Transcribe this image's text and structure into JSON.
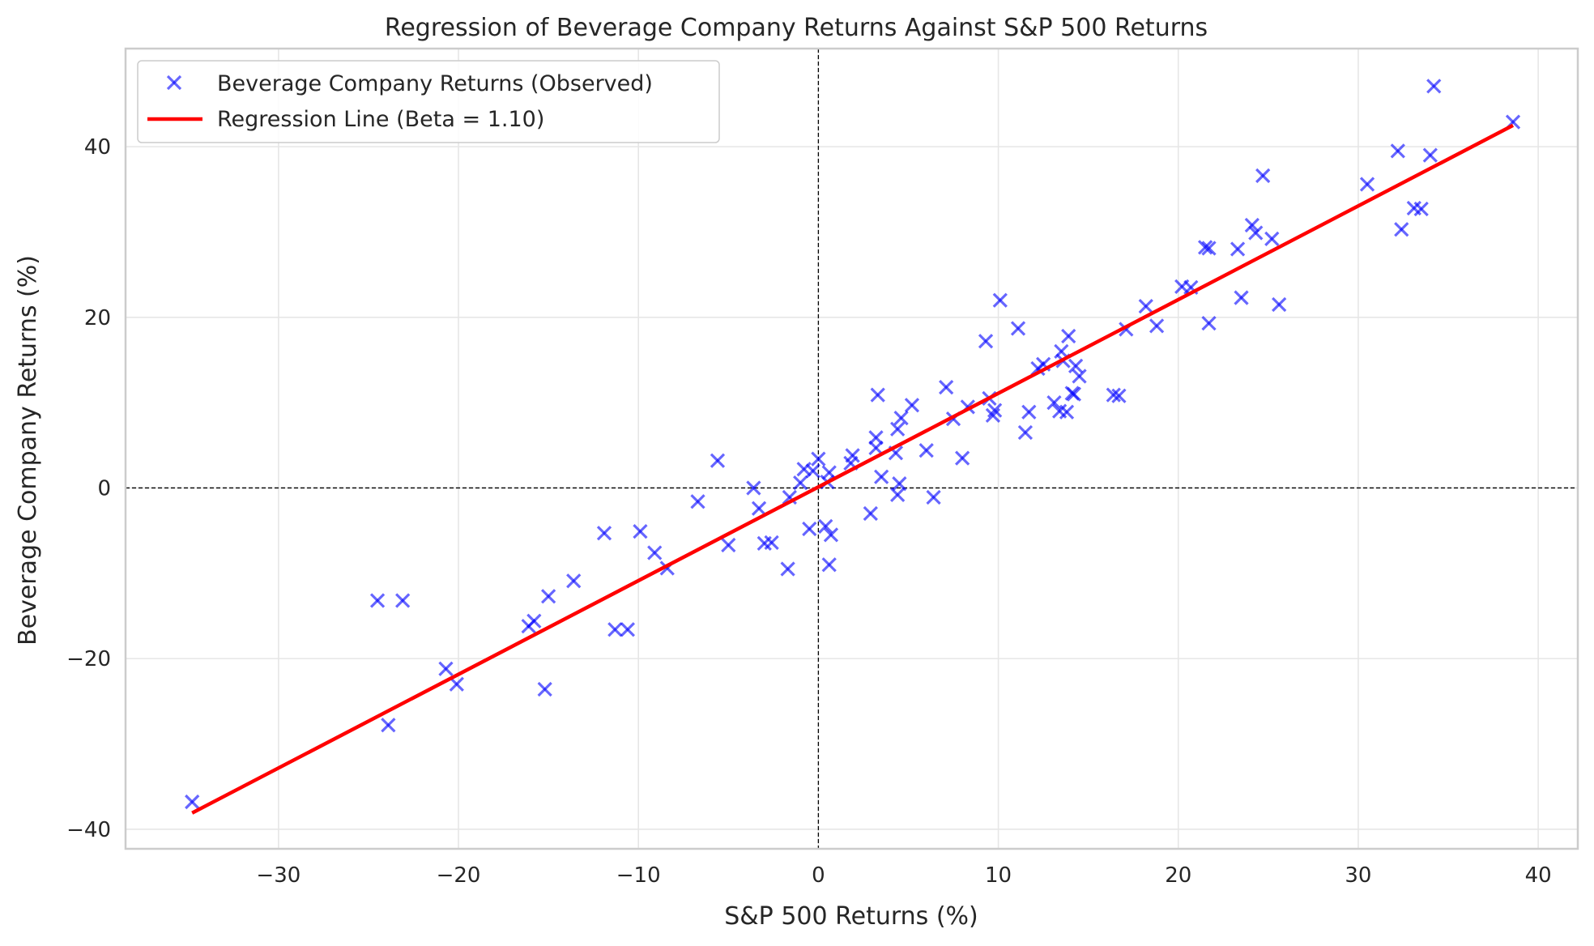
{
  "chart_data": {
    "type": "scatter",
    "title": "Regression of Beverage Company Returns Against S&P 500 Returns",
    "xlabel": "S&P 500 Returns (%)",
    "ylabel": "Beverage Company Returns (%)",
    "xlim": [
      -38.5,
      42.2
    ],
    "ylim": [
      -42.3,
      51.5
    ],
    "xticks": [
      -30,
      -20,
      -10,
      0,
      10,
      20,
      30,
      40
    ],
    "yticks": [
      -40,
      -20,
      0,
      20,
      40
    ],
    "xtick_labels": [
      "−30",
      "−20",
      "−10",
      "0",
      "10",
      "20",
      "30",
      "40"
    ],
    "ytick_labels": [
      "−40",
      "−20",
      "0",
      "20",
      "40"
    ],
    "grid": true,
    "reference_lines": {
      "x": 0,
      "y": 0,
      "style": "dashed",
      "color": "#000000"
    },
    "legend": {
      "position": "top-left",
      "entries": [
        {
          "label": "Beverage Company Returns (Observed)",
          "marker": "x",
          "color": "#0000ff"
        },
        {
          "label": "Regression Line (Beta = 1.10)",
          "marker": "line",
          "color": "#ff0000"
        }
      ]
    },
    "series": [
      {
        "name": "Beverage Company Returns (Observed)",
        "kind": "scatter",
        "marker": "x",
        "color": "#0000ff",
        "points": [
          [
            -34.8,
            -36.8
          ],
          [
            -24.5,
            -13.2
          ],
          [
            -23.1,
            -13.2
          ],
          [
            -23.9,
            -27.8
          ],
          [
            -20.7,
            -21.2
          ],
          [
            -20.1,
            -23.0
          ],
          [
            -16.1,
            -16.2
          ],
          [
            -15.8,
            -15.6
          ],
          [
            -15.2,
            -23.6
          ],
          [
            -15.0,
            -12.7
          ],
          [
            -13.6,
            -10.9
          ],
          [
            -11.9,
            -5.3
          ],
          [
            -11.3,
            -16.6
          ],
          [
            -10.6,
            -16.6
          ],
          [
            -9.9,
            -5.1
          ],
          [
            -9.1,
            -7.6
          ],
          [
            -8.4,
            -9.4
          ],
          [
            -6.7,
            -1.6
          ],
          [
            -5.6,
            3.2
          ],
          [
            -5.0,
            -6.7
          ],
          [
            -3.6,
            0.0
          ],
          [
            -3.3,
            -2.4
          ],
          [
            -3.0,
            -6.5
          ],
          [
            -2.6,
            -6.4
          ],
          [
            -1.7,
            -9.5
          ],
          [
            -1.6,
            -1.1
          ],
          [
            -1.0,
            0.6
          ],
          [
            -0.8,
            2.2
          ],
          [
            -0.5,
            -4.8
          ],
          [
            -0.3,
            2.0
          ],
          [
            0.0,
            3.4
          ],
          [
            0.4,
            -4.5
          ],
          [
            0.6,
            -9.0
          ],
          [
            0.6,
            1.8
          ],
          [
            0.7,
            -5.5
          ],
          [
            0.5,
            0.7
          ],
          [
            1.8,
            2.9
          ],
          [
            1.9,
            3.8
          ],
          [
            2.9,
            -3.0
          ],
          [
            3.2,
            4.7
          ],
          [
            3.2,
            5.9
          ],
          [
            3.3,
            10.9
          ],
          [
            3.5,
            1.3
          ],
          [
            4.3,
            4.1
          ],
          [
            4.4,
            6.9
          ],
          [
            4.4,
            -0.8
          ],
          [
            4.5,
            0.5
          ],
          [
            4.6,
            8.2
          ],
          [
            5.2,
            9.7
          ],
          [
            6.0,
            4.4
          ],
          [
            6.4,
            -1.1
          ],
          [
            7.1,
            11.8
          ],
          [
            7.5,
            8.1
          ],
          [
            8.0,
            3.5
          ],
          [
            8.3,
            9.5
          ],
          [
            9.3,
            17.2
          ],
          [
            9.5,
            10.5
          ],
          [
            9.7,
            8.5
          ],
          [
            9.8,
            9.1
          ],
          [
            10.1,
            22.0
          ],
          [
            11.1,
            18.7
          ],
          [
            11.5,
            6.5
          ],
          [
            11.7,
            8.9
          ],
          [
            12.2,
            14.0
          ],
          [
            12.5,
            14.5
          ],
          [
            13.1,
            10.0
          ],
          [
            13.4,
            9.0
          ],
          [
            13.5,
            16.0
          ],
          [
            13.6,
            14.9
          ],
          [
            13.8,
            8.9
          ],
          [
            13.9,
            17.8
          ],
          [
            14.1,
            11.1
          ],
          [
            14.2,
            11.0
          ],
          [
            14.3,
            14.3
          ],
          [
            14.5,
            13.1
          ],
          [
            16.4,
            10.9
          ],
          [
            16.7,
            10.8
          ],
          [
            17.1,
            18.6
          ],
          [
            18.2,
            21.3
          ],
          [
            18.8,
            19.0
          ],
          [
            20.2,
            23.6
          ],
          [
            20.7,
            23.5
          ],
          [
            21.5,
            28.2
          ],
          [
            21.7,
            28.1
          ],
          [
            21.7,
            19.3
          ],
          [
            23.3,
            28.0
          ],
          [
            23.5,
            22.3
          ],
          [
            24.1,
            30.8
          ],
          [
            24.3,
            29.9
          ],
          [
            24.7,
            36.6
          ],
          [
            25.2,
            29.2
          ],
          [
            25.6,
            21.5
          ],
          [
            30.5,
            35.6
          ],
          [
            32.2,
            39.5
          ],
          [
            32.4,
            30.3
          ],
          [
            33.1,
            32.8
          ],
          [
            33.5,
            32.7
          ],
          [
            34.0,
            39.0
          ],
          [
            34.2,
            47.1
          ],
          [
            38.6,
            42.9
          ]
        ]
      },
      {
        "name": "Regression Line (Beta = 1.10)",
        "kind": "line",
        "color": "#ff0000",
        "x": [
          -34.8,
          38.6
        ],
        "y": [
          -38.1,
          42.5
        ]
      }
    ]
  }
}
